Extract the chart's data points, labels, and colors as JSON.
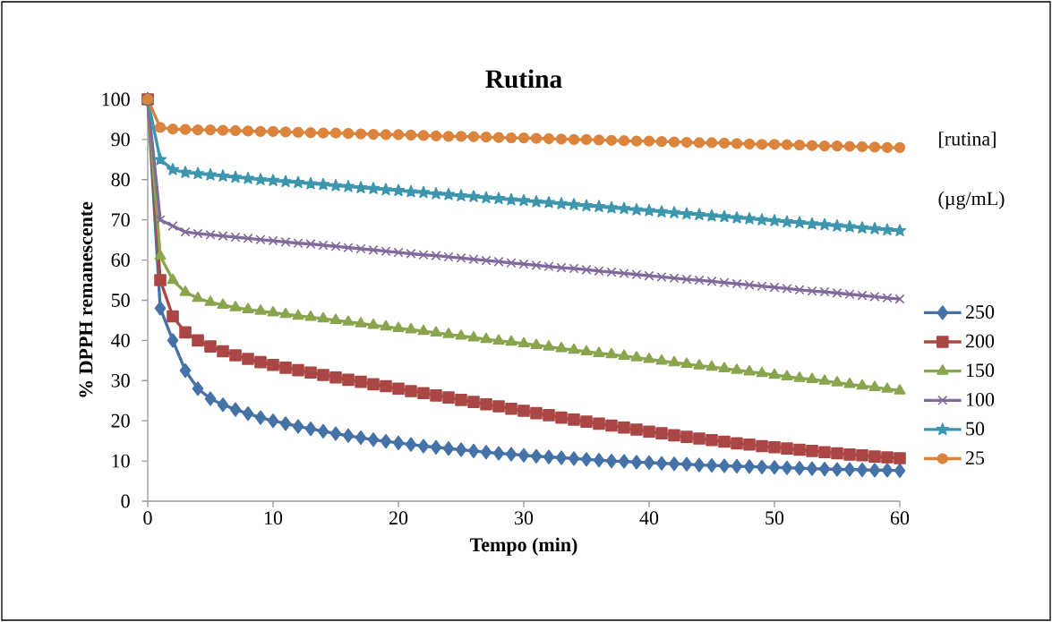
{
  "chart_data": {
    "type": "line",
    "title": "Rutina",
    "xlabel": "Tempo (min)",
    "ylabel": "% DPPH remanescente",
    "legend_title": "[rutina] (µg/mL)",
    "x": [
      0,
      1,
      2,
      3,
      4,
      5,
      6,
      7,
      8,
      9,
      10,
      11,
      12,
      13,
      14,
      15,
      16,
      17,
      18,
      19,
      20,
      21,
      22,
      23,
      24,
      25,
      26,
      27,
      28,
      29,
      30,
      31,
      32,
      33,
      34,
      35,
      36,
      37,
      38,
      39,
      40,
      41,
      42,
      43,
      44,
      45,
      46,
      47,
      48,
      49,
      50,
      51,
      52,
      53,
      54,
      55,
      56,
      57,
      58,
      59,
      60
    ],
    "xlim": [
      0,
      60
    ],
    "xticks": [
      0,
      10,
      20,
      30,
      40,
      50,
      60
    ],
    "ylim": [
      0,
      100
    ],
    "yticks": [
      0,
      10,
      20,
      30,
      40,
      50,
      60,
      70,
      80,
      90,
      100
    ],
    "grid": false,
    "legend": "right",
    "series": [
      {
        "name": "250",
        "color": "#4572a7",
        "marker": "diamond",
        "values": [
          100,
          48,
          40,
          32.5,
          28,
          25.5,
          24,
          22.8,
          21.8,
          20.8,
          20,
          19.3,
          18.6,
          18,
          17.4,
          16.8,
          16.3,
          15.8,
          15.3,
          14.9,
          14.5,
          14.1,
          13.7,
          13.4,
          13.1,
          12.8,
          12.5,
          12.2,
          11.9,
          11.7,
          11.4,
          11.2,
          11,
          10.8,
          10.6,
          10.4,
          10.2,
          10,
          9.9,
          9.7,
          9.6,
          9.4,
          9.3,
          9.2,
          9.0,
          8.9,
          8.8,
          8.7,
          8.6,
          8.5,
          8.4,
          8.3,
          8.2,
          8.1,
          8.0,
          7.9,
          7.9,
          7.8,
          7.7,
          7.7,
          7.6
        ]
      },
      {
        "name": "200",
        "color": "#aa4643",
        "marker": "square",
        "values": [
          100,
          55,
          46,
          42,
          40,
          38.5,
          37.3,
          36.3,
          35.4,
          34.6,
          33.9,
          33.2,
          32.6,
          32,
          31.4,
          30.8,
          30.2,
          29.7,
          29.1,
          28.6,
          28,
          27.4,
          26.9,
          26.3,
          25.8,
          25.2,
          24.7,
          24.1,
          23.6,
          23.0,
          22.5,
          21.9,
          21.4,
          20.8,
          20.3,
          19.8,
          19.3,
          18.8,
          18.3,
          17.8,
          17.3,
          16.9,
          16.4,
          16,
          15.6,
          15.2,
          14.8,
          14.4,
          14.1,
          13.7,
          13.4,
          13.1,
          12.8,
          12.5,
          12.2,
          11.9,
          11.6,
          11.4,
          11.1,
          10.9,
          10.7
        ]
      },
      {
        "name": "150",
        "color": "#89a54e",
        "marker": "triangle",
        "values": [
          100,
          61,
          55,
          52,
          50.5,
          49.5,
          48.8,
          48.2,
          47.7,
          47.3,
          46.9,
          46.5,
          46.1,
          45.8,
          45.4,
          45.0,
          44.6,
          44.2,
          43.8,
          43.4,
          43.0,
          42.7,
          42.3,
          41.9,
          41.5,
          41.1,
          40.7,
          40.3,
          39.9,
          39.6,
          39.2,
          38.8,
          38.4,
          38.0,
          37.6,
          37.2,
          36.8,
          36.5,
          36.1,
          35.7,
          35.3,
          34.9,
          34.5,
          34.1,
          33.7,
          33.4,
          33.0,
          32.6,
          32.2,
          31.8,
          31.4,
          31.0,
          30.6,
          30.3,
          29.9,
          29.5,
          29.1,
          28.7,
          28.3,
          27.9,
          27.5
        ]
      },
      {
        "name": "100",
        "color": "#80699b",
        "marker": "cross",
        "values": [
          100,
          70,
          68.5,
          67,
          66.6,
          66.3,
          66,
          65.7,
          65.4,
          65.1,
          64.8,
          64.5,
          64.2,
          64.0,
          63.7,
          63.4,
          63.1,
          62.8,
          62.5,
          62.2,
          61.9,
          61.6,
          61.3,
          61.1,
          60.8,
          60.5,
          60.2,
          59.9,
          59.6,
          59.3,
          59.0,
          58.7,
          58.4,
          58.1,
          57.9,
          57.6,
          57.3,
          57.0,
          56.7,
          56.4,
          56.1,
          55.8,
          55.5,
          55.2,
          55.0,
          54.7,
          54.4,
          54.1,
          53.8,
          53.5,
          53.2,
          52.9,
          52.6,
          52.3,
          52.1,
          51.8,
          51.5,
          51.2,
          50.9,
          50.6,
          50.3
        ]
      },
      {
        "name": "50",
        "color": "#3d96ae",
        "marker": "star",
        "values": [
          100,
          85,
          82.5,
          81.8,
          81.5,
          81.2,
          80.9,
          80.6,
          80.3,
          80.0,
          79.8,
          79.5,
          79.3,
          79.0,
          78.8,
          78.5,
          78.3,
          78.0,
          77.8,
          77.5,
          77.3,
          77.0,
          76.8,
          76.5,
          76.3,
          76.0,
          75.8,
          75.5,
          75.3,
          75.0,
          74.8,
          74.5,
          74.3,
          74.0,
          73.8,
          73.5,
          73.3,
          73.0,
          72.8,
          72.5,
          72.3,
          72.0,
          71.8,
          71.5,
          71.3,
          71.0,
          70.8,
          70.5,
          70.3,
          70.0,
          69.8,
          69.5,
          69.3,
          69.0,
          68.8,
          68.5,
          68.3,
          68.0,
          67.8,
          67.5,
          67.3
        ]
      },
      {
        "name": "25",
        "color": "#db843d",
        "marker": "circle",
        "values": [
          100,
          93,
          92.6,
          92.5,
          92.4,
          92.4,
          92.3,
          92.2,
          92.1,
          92.0,
          92.0,
          91.9,
          91.8,
          91.7,
          91.6,
          91.6,
          91.5,
          91.4,
          91.3,
          91.2,
          91.2,
          91.1,
          91.0,
          90.9,
          90.8,
          90.8,
          90.7,
          90.6,
          90.5,
          90.4,
          90.4,
          90.3,
          90.2,
          90.1,
          90.0,
          90.0,
          89.9,
          89.8,
          89.7,
          89.6,
          89.6,
          89.5,
          89.4,
          89.3,
          89.2,
          89.2,
          89.1,
          89.0,
          88.9,
          88.8,
          88.8,
          88.7,
          88.6,
          88.5,
          88.4,
          88.4,
          88.3,
          88.2,
          88.1,
          88.0,
          88.0
        ]
      }
    ]
  }
}
